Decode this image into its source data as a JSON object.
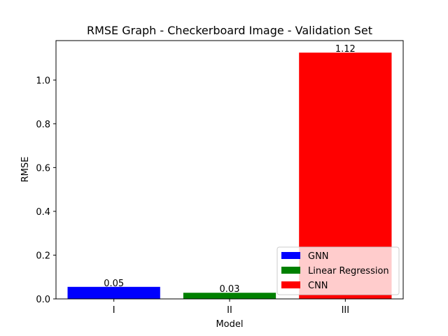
{
  "chart_data": {
    "type": "bar",
    "title": "RMSE Graph - Checkerboard Image - Validation Set",
    "xlabel": "Model",
    "ylabel": "RMSE",
    "categories": [
      "I",
      "II",
      "III"
    ],
    "values": [
      0.055,
      0.028,
      1.125
    ],
    "value_labels": [
      "0.05",
      "0.03",
      "1.12"
    ],
    "colors": [
      "#0000ff",
      "#008000",
      "#ff0000"
    ],
    "ylim": [
      0,
      1.18
    ],
    "yticks": [
      0.0,
      0.2,
      0.4,
      0.6,
      0.8,
      1.0
    ],
    "ytick_labels": [
      "0.0",
      "0.2",
      "0.4",
      "0.6",
      "0.8",
      "1.0"
    ],
    "grid": false,
    "legend": {
      "placement": "lower-right",
      "entries": [
        {
          "label": "GNN",
          "color": "#0000ff"
        },
        {
          "label": "Linear Regression",
          "color": "#008000"
        },
        {
          "label": "CNN",
          "color": "#ff0000"
        }
      ]
    }
  }
}
